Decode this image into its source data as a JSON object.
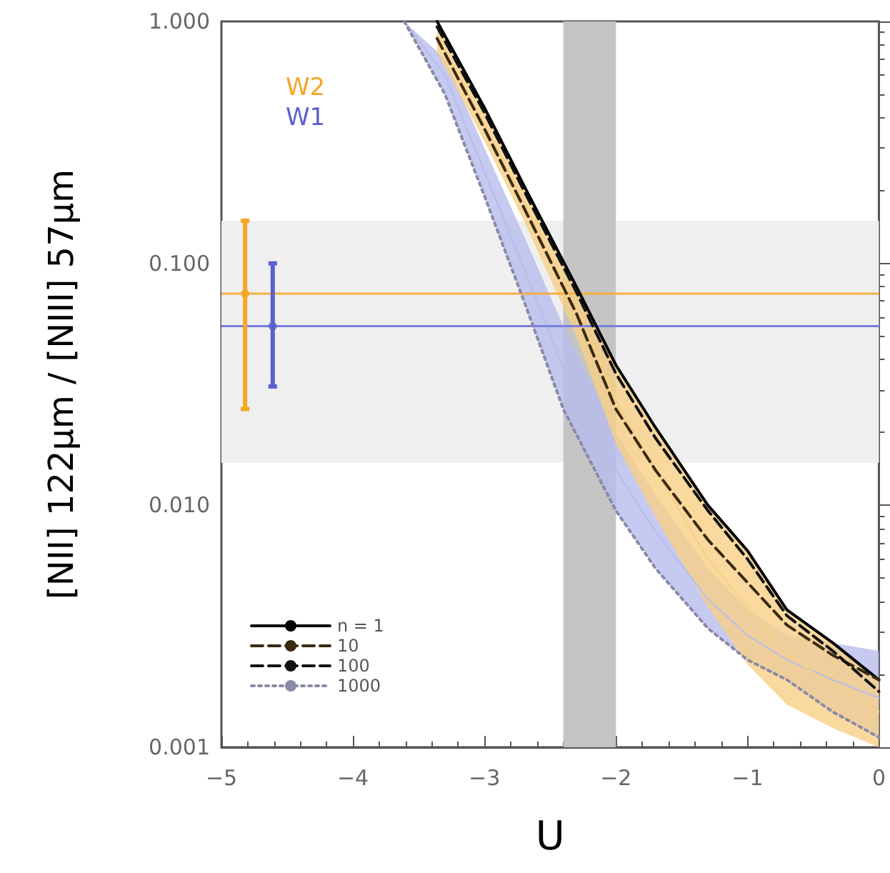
{
  "chart_data": {
    "type": "line",
    "xlabel": "U",
    "ylabel": "[NII] 122µm / [NIII] 57µm",
    "xlim": [
      -5,
      0
    ],
    "xticks": [
      {
        "value": -5,
        "label": "−5"
      },
      {
        "value": -4,
        "label": "−4"
      },
      {
        "value": -3,
        "label": "−3"
      },
      {
        "value": -2,
        "label": "−2"
      },
      {
        "value": -1,
        "label": "−1"
      },
      0
    ],
    "ylim": [
      0.001,
      1
    ],
    "log": true,
    "yticks": [
      {
        "value": 0.001,
        "label": "0.001"
      },
      {
        "value": 0.01,
        "label": "0.010"
      },
      {
        "value": 0.1,
        "label": "0.100"
      },
      {
        "value": 1,
        "label": "1.000"
      }
    ],
    "grid": false,
    "legend": "bottom left",
    "marker": "none",
    "series": [
      {
        "color": "#b8bcec",
        "x": [
          -3.61,
          -3.3,
          -3.0,
          -2.7,
          -2.4,
          -2.0,
          -1.7,
          -1.3,
          -1.0,
          -0.7,
          -0.35,
          0
        ],
        "values": [
          1.0,
          0.6,
          0.24,
          0.095,
          0.037,
          0.014,
          0.0078,
          0.0041,
          0.0029,
          0.0023,
          0.0019,
          0.0016
        ],
        "upper": [
          1.0,
          0.7,
          0.3,
          0.13,
          0.055,
          0.02,
          0.011,
          0.0055,
          0.0037,
          0.0029,
          0.0027,
          0.0025
        ],
        "lower": [
          1.0,
          0.5,
          0.19,
          0.07,
          0.025,
          0.0095,
          0.0055,
          0.0031,
          0.0023,
          0.0019,
          0.0014,
          0.0011
        ]
      },
      {
        "color": "#f7cf86",
        "x": [
          -3.36,
          -3.0,
          -2.7,
          -2.3,
          -2.0,
          -1.7,
          -1.3,
          -1.0,
          -0.7,
          -0.35,
          0
        ],
        "values": [
          0.87,
          0.375,
          0.18,
          0.065,
          0.027,
          0.014,
          0.006,
          0.0038,
          0.0024,
          0.0018,
          0.0014
        ],
        "upper": [
          1.0,
          0.44,
          0.21,
          0.08,
          0.038,
          0.021,
          0.01,
          0.0065,
          0.0037,
          0.0027,
          0.0019
        ],
        "lower": [
          0.75,
          0.32,
          0.15,
          0.05,
          0.018,
          0.009,
          0.0038,
          0.0022,
          0.0015,
          0.0012,
          0.001
        ]
      },
      {
        "name": "n = 1",
        "color": "#000000",
        "line_style": "solid",
        "x": [
          -3.36,
          -3.0,
          -2.7,
          -2.3,
          -2.0,
          -1.7,
          -1.3,
          -1.0,
          -0.7,
          -0.35,
          0
        ],
        "values": [
          1.0,
          0.44,
          0.21,
          0.08,
          0.038,
          0.021,
          0.01,
          0.0065,
          0.0037,
          0.0027,
          0.0019
        ]
      },
      {
        "name": "10",
        "color": "#3a2a10",
        "line_style": "dashed",
        "x": [
          -3.36,
          -3.0,
          -2.7,
          -2.3,
          -2.0,
          -1.7,
          -1.3,
          -1.0,
          -0.7,
          -0.35,
          0
        ],
        "values": [
          0.85,
          0.36,
          0.17,
          0.062,
          0.025,
          0.014,
          0.0072,
          0.0048,
          0.0032,
          0.0024,
          0.0019
        ]
      },
      {
        "name": "100",
        "color": "#111111",
        "line_style": "dashed",
        "x": [
          -3.36,
          -3.0,
          -2.7,
          -2.3,
          -2.0,
          -1.7,
          -1.3,
          -1.0,
          -0.7,
          -0.35,
          0
        ],
        "values": [
          0.95,
          0.42,
          0.2,
          0.076,
          0.035,
          0.019,
          0.0095,
          0.006,
          0.0035,
          0.0025,
          0.0017
        ]
      },
      {
        "name": "1000",
        "color": "#8a8aa8",
        "line_style": "dotted",
        "x": [
          -3.61,
          -3.3,
          -3.0,
          -2.7,
          -2.4,
          -2.0,
          -1.7,
          -1.3,
          -1.0,
          -0.7,
          -0.35,
          0
        ],
        "values": [
          1.0,
          0.5,
          0.19,
          0.07,
          0.025,
          0.0095,
          0.0055,
          0.0031,
          0.0023,
          0.0019,
          0.0014,
          0.0011
        ]
      },
      {
        "name": "W2",
        "type": "scatter",
        "marker": "circle",
        "color": "#f5a623",
        "x": [
          -4.82
        ],
        "values": [
          0.075
        ],
        "errors": [
          [
            0.025,
            0.15
          ]
        ]
      },
      {
        "name": "W1",
        "type": "scatter",
        "marker": "circle",
        "color": "#5a5fd0",
        "x": [
          -4.61
        ],
        "values": [
          0.055
        ],
        "errors": [
          [
            0.031,
            0.1
          ]
        ]
      }
    ],
    "ref_lines": [
      {
        "axis": "y",
        "value": 0.075,
        "color": "#f5b040"
      },
      {
        "axis": "y",
        "value": 0.055,
        "color": "#7a7ee0"
      }
    ],
    "bands": [
      {
        "axis": "y",
        "from": 0.015,
        "to": 0.15,
        "color": "#efefef"
      },
      {
        "axis": "x",
        "from": -2.4,
        "to": -2.0,
        "color": "#c4c4c4"
      }
    ]
  }
}
